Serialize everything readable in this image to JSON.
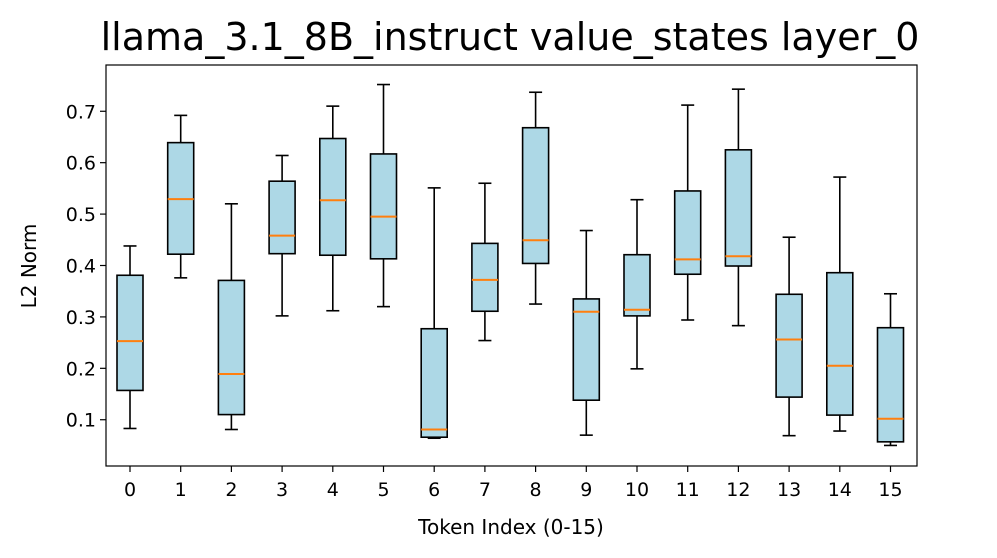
{
  "chart_data": {
    "type": "boxplot",
    "title": "llama_3.1_8B_instruct value_states layer_0",
    "xlabel": "Token Index (0-15)",
    "ylabel": "L2 Norm",
    "ylim": [
      0.01,
      0.79
    ],
    "yticks": [
      0.1,
      0.2,
      0.3,
      0.4,
      0.5,
      0.6,
      0.7
    ],
    "ytick_labels": [
      "0.1",
      "0.2",
      "0.3",
      "0.4",
      "0.5",
      "0.6",
      "0.7"
    ],
    "categories": [
      "0",
      "1",
      "2",
      "3",
      "4",
      "5",
      "6",
      "7",
      "8",
      "9",
      "10",
      "11",
      "12",
      "13",
      "14",
      "15"
    ],
    "box_fill": "#add8e6",
    "median_color": "#ff7f0e",
    "boxes": [
      {
        "whislo": 0.083,
        "q1": 0.157,
        "med": 0.253,
        "q3": 0.381,
        "whishi": 0.438
      },
      {
        "whislo": 0.376,
        "q1": 0.422,
        "med": 0.529,
        "q3": 0.639,
        "whishi": 0.692
      },
      {
        "whislo": 0.081,
        "q1": 0.11,
        "med": 0.189,
        "q3": 0.371,
        "whishi": 0.52
      },
      {
        "whislo": 0.302,
        "q1": 0.423,
        "med": 0.458,
        "q3": 0.564,
        "whishi": 0.614
      },
      {
        "whislo": 0.312,
        "q1": 0.42,
        "med": 0.527,
        "q3": 0.647,
        "whishi": 0.71
      },
      {
        "whislo": 0.32,
        "q1": 0.413,
        "med": 0.495,
        "q3": 0.617,
        "whishi": 0.752
      },
      {
        "whislo": 0.064,
        "q1": 0.066,
        "med": 0.081,
        "q3": 0.277,
        "whishi": 0.551
      },
      {
        "whislo": 0.254,
        "q1": 0.311,
        "med": 0.372,
        "q3": 0.443,
        "whishi": 0.56
      },
      {
        "whislo": 0.325,
        "q1": 0.404,
        "med": 0.449,
        "q3": 0.668,
        "whishi": 0.737
      },
      {
        "whislo": 0.07,
        "q1": 0.138,
        "med": 0.31,
        "q3": 0.335,
        "whishi": 0.468
      },
      {
        "whislo": 0.199,
        "q1": 0.302,
        "med": 0.314,
        "q3": 0.421,
        "whishi": 0.528
      },
      {
        "whislo": 0.294,
        "q1": 0.383,
        "med": 0.412,
        "q3": 0.545,
        "whishi": 0.712
      },
      {
        "whislo": 0.283,
        "q1": 0.399,
        "med": 0.418,
        "q3": 0.625,
        "whishi": 0.743
      },
      {
        "whislo": 0.069,
        "q1": 0.144,
        "med": 0.256,
        "q3": 0.344,
        "whishi": 0.455
      },
      {
        "whislo": 0.078,
        "q1": 0.109,
        "med": 0.205,
        "q3": 0.386,
        "whishi": 0.572
      },
      {
        "whislo": 0.05,
        "q1": 0.057,
        "med": 0.102,
        "q3": 0.279,
        "whishi": 0.345
      }
    ]
  }
}
